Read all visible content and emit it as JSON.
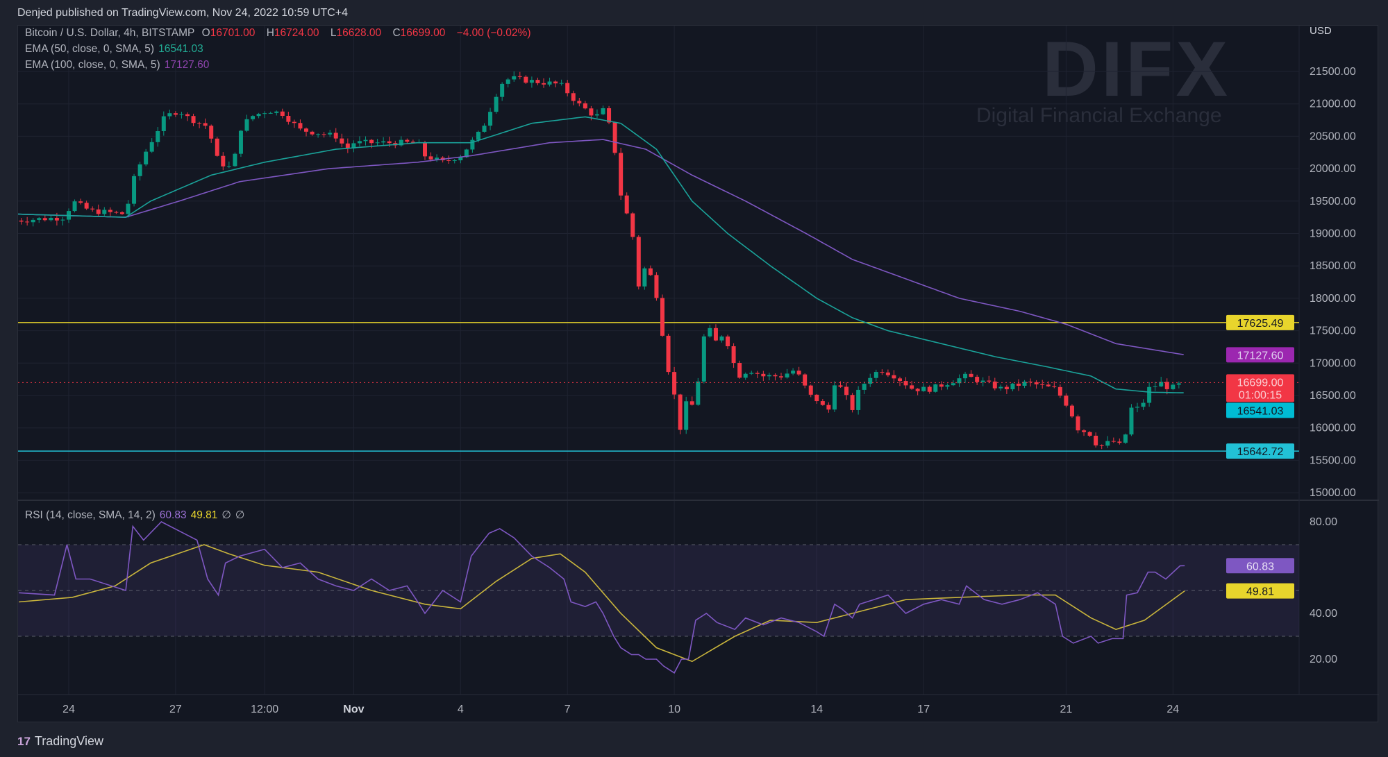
{
  "header": {
    "published": "Denjed published on TradingView.com, Nov 24, 2022 10:59 UTC+4"
  },
  "legend": {
    "symbol": "Bitcoin / U.S. Dollar, 4h, BITSTAMP",
    "o_label": "O",
    "o": "16701.00",
    "h_label": "H",
    "h": "16724.00",
    "l_label": "L",
    "l": "16628.00",
    "c_label": "C",
    "c": "16699.00",
    "change": "−4.00 (−0.02%)",
    "ema50_label": "EMA (50, close, 0, SMA, 5)",
    "ema50_value": "16541.03",
    "ema100_label": "EMA (100, close, 0, SMA, 5)",
    "ema100_value": "17127.60",
    "rsi_label": "RSI (14, close, SMA, 14, 2)",
    "rsi_value": "60.83",
    "rsi_ma_value": "49.81",
    "hidden1": "∅",
    "hidden2": "∅"
  },
  "watermark": {
    "title": "DIFX",
    "subtitle": "Digital Financial Exchange"
  },
  "footer": {
    "brand": "TradingView",
    "brand_icon": "17"
  },
  "colors": {
    "up": "#089981",
    "down": "#f23645",
    "ema50": "#1aa39a",
    "ema100": "#7e57c2",
    "rsi": "#7e57c2",
    "rsi_ma": "#c9b53c",
    "resistance": "#e8d52c",
    "support": "#22c1d6"
  },
  "chart_data": {
    "type": "candlestick",
    "title": "Bitcoin / U.S. Dollar, 4h, BITSTAMP",
    "x_unit": "days since Oct 24 2022",
    "currency": "USD",
    "ylim": [
      14900,
      21900
    ],
    "price_ticks": [
      "21500.00",
      "21000.00",
      "20500.00",
      "20000.00",
      "19500.00",
      "19000.00",
      "18500.00",
      "18000.00",
      "17500.00",
      "17000.00",
      "16500.00",
      "16000.00",
      "15500.00",
      "15000.00"
    ],
    "time_ticks": [
      {
        "label": "24",
        "day": 0
      },
      {
        "label": "27",
        "day": 3
      },
      {
        "label": "12:00",
        "day": 5.5
      },
      {
        "label": "Nov",
        "day": 8
      },
      {
        "label": "4",
        "day": 11
      },
      {
        "label": "7",
        "day": 14
      },
      {
        "label": "10",
        "day": 17
      },
      {
        "label": "14",
        "day": 21
      },
      {
        "label": "17",
        "day": 24
      },
      {
        "label": "21",
        "day": 28
      },
      {
        "label": "24",
        "day": 31
      }
    ],
    "close_path": [
      [
        -1.5,
        19200
      ],
      [
        -0.1,
        19250
      ],
      [
        0.1,
        19500
      ],
      [
        0.6,
        19350
      ],
      [
        1.6,
        19300
      ],
      [
        1.8,
        19800
      ],
      [
        2.1,
        20200
      ],
      [
        2.3,
        20400
      ],
      [
        2.7,
        20800
      ],
      [
        3.1,
        20900
      ],
      [
        3.3,
        20800
      ],
      [
        3.9,
        20650
      ],
      [
        4.2,
        20100
      ],
      [
        4.6,
        20000
      ],
      [
        4.8,
        20600
      ],
      [
        5.1,
        20800
      ],
      [
        5.6,
        20900
      ],
      [
        6.0,
        20850
      ],
      [
        6.5,
        20600
      ],
      [
        7.5,
        20500
      ],
      [
        7.8,
        20300
      ],
      [
        8.0,
        20400
      ],
      [
        9.8,
        20400
      ],
      [
        10.0,
        20200
      ],
      [
        10.5,
        20100
      ],
      [
        11.0,
        20200
      ],
      [
        11.3,
        20400
      ],
      [
        11.6,
        20600
      ],
      [
        11.9,
        21000
      ],
      [
        12.1,
        21300
      ],
      [
        12.4,
        21400
      ],
      [
        13.0,
        21350
      ],
      [
        13.8,
        21300
      ],
      [
        14.3,
        21000
      ],
      [
        14.8,
        20800
      ],
      [
        15.0,
        20900
      ],
      [
        15.3,
        20500
      ],
      [
        15.4,
        19800
      ],
      [
        15.6,
        19400
      ],
      [
        15.8,
        19100
      ],
      [
        16.0,
        18200
      ],
      [
        16.1,
        18500
      ],
      [
        16.4,
        18300
      ],
      [
        16.6,
        17800
      ],
      [
        16.7,
        17300
      ],
      [
        16.9,
        16700
      ],
      [
        17.0,
        16500
      ],
      [
        17.2,
        15900
      ],
      [
        17.3,
        16300
      ],
      [
        17.4,
        16500
      ],
      [
        17.6,
        16200
      ],
      [
        17.7,
        17000
      ],
      [
        17.9,
        17600
      ],
      [
        18.0,
        17500
      ],
      [
        18.2,
        17300
      ],
      [
        18.4,
        17500
      ],
      [
        18.6,
        17100
      ],
      [
        18.8,
        16800
      ],
      [
        19.1,
        16900
      ],
      [
        19.5,
        16800
      ],
      [
        20.0,
        16800
      ],
      [
        20.4,
        16900
      ],
      [
        20.6,
        16700
      ],
      [
        20.8,
        16500
      ],
      [
        21.1,
        16400
      ],
      [
        21.3,
        16200
      ],
      [
        21.5,
        16700
      ],
      [
        21.7,
        16600
      ],
      [
        22.0,
        16300
      ],
      [
        22.2,
        16600
      ],
      [
        22.5,
        16800
      ],
      [
        22.8,
        16900
      ],
      [
        23.2,
        16800
      ],
      [
        23.7,
        16600
      ],
      [
        24.2,
        16600
      ],
      [
        24.7,
        16700
      ],
      [
        25.2,
        16800
      ],
      [
        25.7,
        16700
      ],
      [
        26.2,
        16600
      ],
      [
        26.9,
        16700
      ],
      [
        27.7,
        16600
      ],
      [
        28.1,
        16300
      ],
      [
        28.3,
        16000
      ],
      [
        28.7,
        15900
      ],
      [
        28.9,
        15700
      ],
      [
        29.3,
        15800
      ],
      [
        29.6,
        15700
      ],
      [
        29.8,
        16300
      ],
      [
        30.1,
        16300
      ],
      [
        30.3,
        16600
      ],
      [
        30.7,
        16700
      ],
      [
        30.9,
        16600
      ],
      [
        31.33,
        16699
      ]
    ],
    "ema50": [
      [
        -1.5,
        19300
      ],
      [
        1.6,
        19250
      ],
      [
        2.3,
        19500
      ],
      [
        4.0,
        19900
      ],
      [
        5.5,
        20100
      ],
      [
        7.5,
        20300
      ],
      [
        9.8,
        20400
      ],
      [
        11.3,
        20400
      ],
      [
        13.0,
        20700
      ],
      [
        14.5,
        20800
      ],
      [
        15.5,
        20700
      ],
      [
        16.5,
        20300
      ],
      [
        17.5,
        19500
      ],
      [
        18.5,
        19000
      ],
      [
        19.7,
        18500
      ],
      [
        21.0,
        18000
      ],
      [
        22.0,
        17700
      ],
      [
        23.0,
        17500
      ],
      [
        24.5,
        17300
      ],
      [
        26.0,
        17100
      ],
      [
        27.4,
        16950
      ],
      [
        28.7,
        16800
      ],
      [
        29.4,
        16600
      ],
      [
        30.4,
        16550
      ],
      [
        31.33,
        16541.03
      ]
    ],
    "ema100": [
      [
        -1.5,
        19300
      ],
      [
        1.6,
        19250
      ],
      [
        3.1,
        19500
      ],
      [
        4.8,
        19800
      ],
      [
        7.3,
        20000
      ],
      [
        9.8,
        20100
      ],
      [
        11.3,
        20200
      ],
      [
        13.5,
        20400
      ],
      [
        15.0,
        20450
      ],
      [
        16.2,
        20300
      ],
      [
        17.5,
        19900
      ],
      [
        19.0,
        19500
      ],
      [
        20.7,
        19000
      ],
      [
        22.0,
        18600
      ],
      [
        23.5,
        18300
      ],
      [
        25.0,
        18000
      ],
      [
        26.7,
        17800
      ],
      [
        28.0,
        17600
      ],
      [
        29.4,
        17300
      ],
      [
        31.33,
        17127.6
      ]
    ],
    "horizontal_lines": [
      {
        "name": "resistance",
        "value": 17625.49,
        "label": "17625.49"
      },
      {
        "name": "support",
        "value": 15642.72,
        "label": "15642.72"
      }
    ],
    "price_labels": {
      "last": "16699.00",
      "countdown": "01:00:15",
      "ema100": "17127.60",
      "ema50": "16541.03"
    },
    "rsi": {
      "ylim": [
        10,
        90
      ],
      "ticks": [
        "80.00",
        "40.00",
        "20.00"
      ],
      "bands": [
        70,
        50,
        30
      ],
      "value_label": "60.83",
      "ma_label": "49.81",
      "line": [
        [
          -1.4,
          49
        ],
        [
          -0.4,
          48
        ],
        [
          -0.05,
          70
        ],
        [
          0.2,
          55
        ],
        [
          0.6,
          55
        ],
        [
          1.6,
          50
        ],
        [
          1.8,
          78
        ],
        [
          2.1,
          72
        ],
        [
          2.6,
          80
        ],
        [
          3.1,
          76
        ],
        [
          3.6,
          72
        ],
        [
          3.9,
          55
        ],
        [
          4.2,
          48
        ],
        [
          4.4,
          62
        ],
        [
          4.8,
          65
        ],
        [
          5.5,
          68
        ],
        [
          6.0,
          60
        ],
        [
          6.5,
          62
        ],
        [
          7.0,
          55
        ],
        [
          7.5,
          52
        ],
        [
          8.0,
          50
        ],
        [
          8.5,
          55
        ],
        [
          9.0,
          50
        ],
        [
          9.5,
          52
        ],
        [
          9.8,
          45
        ],
        [
          10.0,
          40
        ],
        [
          10.5,
          50
        ],
        [
          11.0,
          45
        ],
        [
          11.3,
          65
        ],
        [
          11.8,
          75
        ],
        [
          12.1,
          77
        ],
        [
          12.5,
          73
        ],
        [
          13.0,
          65
        ],
        [
          13.5,
          60
        ],
        [
          13.9,
          55
        ],
        [
          14.1,
          45
        ],
        [
          14.5,
          43
        ],
        [
          14.8,
          45
        ],
        [
          15.0,
          40
        ],
        [
          15.3,
          30
        ],
        [
          15.5,
          25
        ],
        [
          15.8,
          22
        ],
        [
          16.0,
          22
        ],
        [
          16.2,
          20
        ],
        [
          16.5,
          20
        ],
        [
          16.7,
          17
        ],
        [
          17.0,
          14
        ],
        [
          17.2,
          20
        ],
        [
          17.4,
          20
        ],
        [
          17.6,
          37
        ],
        [
          17.9,
          40
        ],
        [
          18.2,
          36
        ],
        [
          18.7,
          33
        ],
        [
          19.0,
          38
        ],
        [
          19.5,
          35
        ],
        [
          20.0,
          38
        ],
        [
          20.5,
          36
        ],
        [
          21.0,
          32
        ],
        [
          21.2,
          30
        ],
        [
          21.5,
          44
        ],
        [
          21.7,
          42
        ],
        [
          22.0,
          38
        ],
        [
          22.2,
          44
        ],
        [
          22.6,
          46
        ],
        [
          23.0,
          48
        ],
        [
          23.5,
          40
        ],
        [
          24.0,
          44
        ],
        [
          24.5,
          46
        ],
        [
          25.0,
          44
        ],
        [
          25.2,
          52
        ],
        [
          25.7,
          46
        ],
        [
          26.2,
          44
        ],
        [
          26.7,
          46
        ],
        [
          27.2,
          49
        ],
        [
          27.7,
          44
        ],
        [
          27.9,
          30
        ],
        [
          28.2,
          27
        ],
        [
          28.7,
          30
        ],
        [
          28.9,
          27
        ],
        [
          29.3,
          29
        ],
        [
          29.6,
          29
        ],
        [
          29.7,
          48
        ],
        [
          30.0,
          49
        ],
        [
          30.3,
          58
        ],
        [
          30.5,
          58
        ],
        [
          30.8,
          55
        ],
        [
          31.2,
          60.8
        ],
        [
          31.33,
          60.83
        ]
      ],
      "ma": [
        [
          -1.4,
          45
        ],
        [
          0.1,
          47
        ],
        [
          1.3,
          52
        ],
        [
          2.3,
          62
        ],
        [
          3.8,
          70
        ],
        [
          4.5,
          66
        ],
        [
          5.5,
          61
        ],
        [
          7.0,
          58
        ],
        [
          8.5,
          50
        ],
        [
          10.0,
          44
        ],
        [
          11.0,
          42
        ],
        [
          12.0,
          54
        ],
        [
          13.0,
          64
        ],
        [
          13.8,
          66
        ],
        [
          14.5,
          58
        ],
        [
          15.5,
          40
        ],
        [
          16.5,
          25
        ],
        [
          17.5,
          19
        ],
        [
          18.7,
          30
        ],
        [
          19.7,
          37
        ],
        [
          21.0,
          36
        ],
        [
          22.0,
          40
        ],
        [
          23.5,
          46
        ],
        [
          25.0,
          47
        ],
        [
          26.7,
          48
        ],
        [
          27.7,
          48
        ],
        [
          28.7,
          38
        ],
        [
          29.4,
          33
        ],
        [
          30.2,
          37
        ],
        [
          31.33,
          49.81
        ]
      ]
    }
  }
}
